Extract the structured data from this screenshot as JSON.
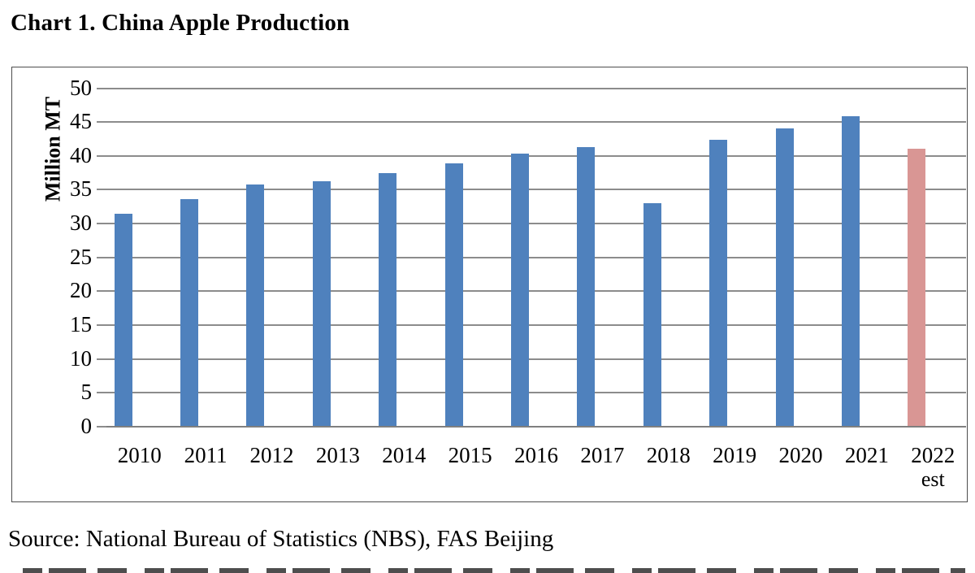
{
  "page": {
    "title": "Chart 1. China Apple Production",
    "source_line": "Source: National Bureau of Statistics (NBS), FAS Beijing"
  },
  "chart_data": {
    "type": "bar",
    "title": "Chart 1. China Apple Production",
    "xlabel": "",
    "ylabel": "Million MT",
    "ylim": [
      0,
      50
    ],
    "yticks": [
      0,
      5,
      10,
      15,
      20,
      25,
      30,
      35,
      40,
      45,
      50
    ],
    "grid": true,
    "legend": "none",
    "categories": [
      "2010",
      "2011",
      "2012",
      "2013",
      "2014",
      "2015",
      "2016",
      "2017",
      "2018",
      "2019",
      "2020",
      "2021",
      "2022"
    ],
    "category_second_lines": [
      "",
      "",
      "",
      "",
      "",
      "",
      "",
      "",
      "",
      "",
      "",
      "",
      "est"
    ],
    "values": [
      31.5,
      33.6,
      35.8,
      36.3,
      37.4,
      38.9,
      40.3,
      41.3,
      33.0,
      42.4,
      44.0,
      45.9,
      41.0
    ],
    "bar_fill_colors": [
      "#4F81BD",
      "#4F81BD",
      "#4F81BD",
      "#4F81BD",
      "#4F81BD",
      "#4F81BD",
      "#4F81BD",
      "#4F81BD",
      "#4F81BD",
      "#4F81BD",
      "#4F81BD",
      "#4F81BD",
      "#D99694"
    ],
    "estimate_index": 12,
    "note": "2022 bar is an estimate (est), shown in pink"
  },
  "colors": {
    "bar_blue": "#4F81BD",
    "bar_estimate_pink": "#D99694",
    "gridline_gray": "#8C8C8C",
    "axis_gray": "#7F7F7F",
    "frame_border": "#4D4D4D",
    "text_black": "#000000",
    "background": "#FFFFFF"
  }
}
